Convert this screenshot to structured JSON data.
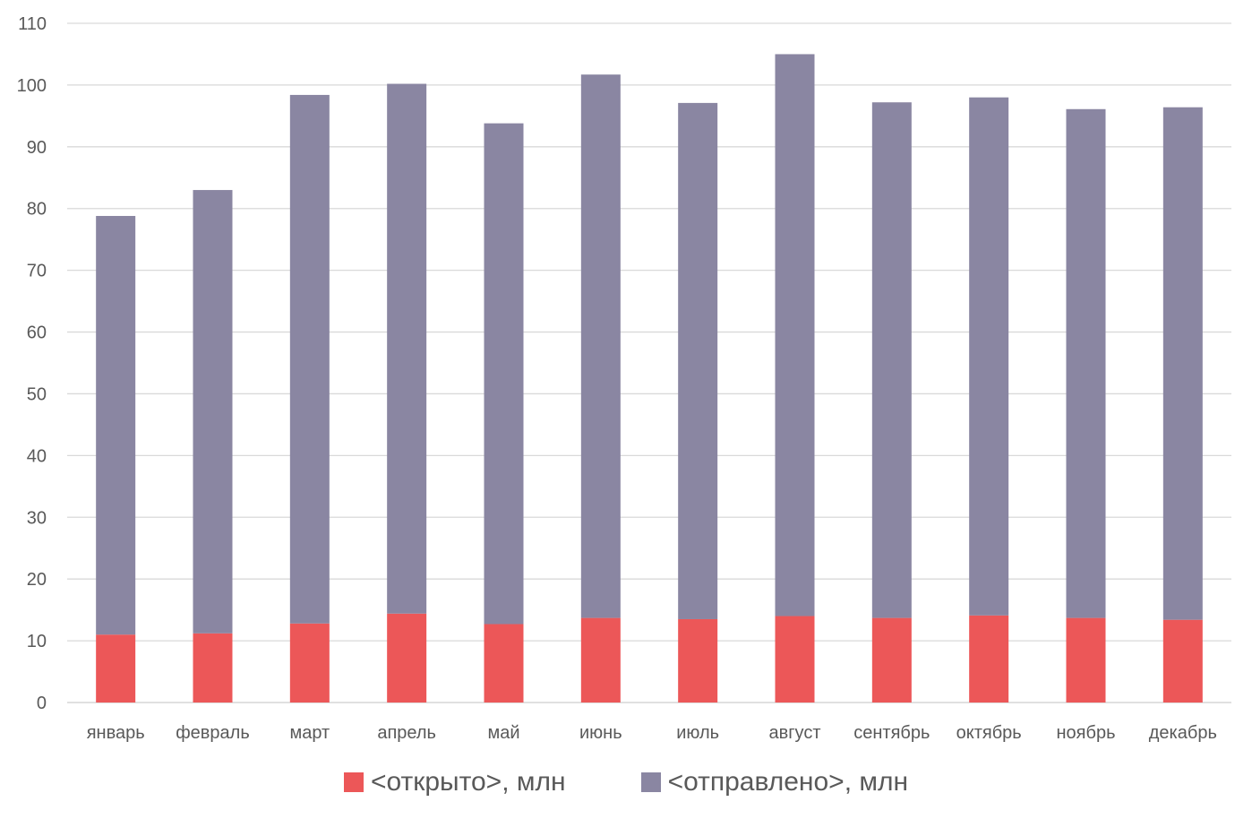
{
  "chart_data": {
    "type": "bar",
    "stacked": true,
    "categories": [
      "январь",
      "февраль",
      "март",
      "апрель",
      "май",
      "июнь",
      "июль",
      "август",
      "сентябрь",
      "октябрь",
      "ноябрь",
      "декабрь"
    ],
    "series": [
      {
        "name": "<открыто>, млн",
        "color": "#ec5758",
        "values": [
          11,
          11.2,
          12.8,
          14.4,
          12.7,
          13.7,
          13.5,
          14,
          13.7,
          14.1,
          13.7,
          13.4
        ]
      },
      {
        "name": "<отправлено>, млн",
        "color": "#8a86a2",
        "values": [
          67.8,
          71.8,
          85.6,
          85.8,
          81.1,
          88,
          83.6,
          91,
          83.5,
          83.9,
          82.4,
          83
        ]
      }
    ],
    "ylim": [
      0,
      110
    ],
    "yticks": [
      0,
      10,
      20,
      30,
      40,
      50,
      60,
      70,
      80,
      90,
      100,
      110
    ],
    "grid": true,
    "legend_position": "bottom",
    "title": "",
    "xlabel": "",
    "ylabel": ""
  }
}
